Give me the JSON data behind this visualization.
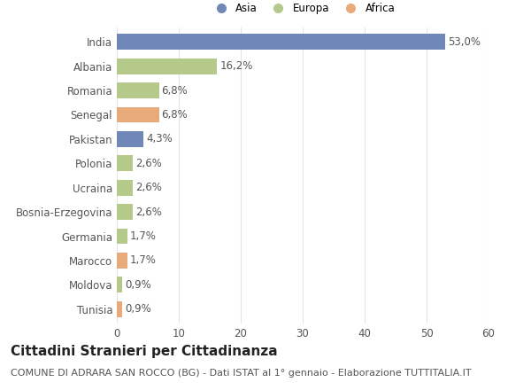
{
  "categories": [
    "India",
    "Albania",
    "Romania",
    "Senegal",
    "Pakistan",
    "Polonia",
    "Ucraina",
    "Bosnia-Erzegovina",
    "Germania",
    "Marocco",
    "Moldova",
    "Tunisia"
  ],
  "values": [
    53.0,
    16.2,
    6.8,
    6.8,
    4.3,
    2.6,
    2.6,
    2.6,
    1.7,
    1.7,
    0.9,
    0.9
  ],
  "colors": [
    "#7088b8",
    "#b5c98a",
    "#b5c98a",
    "#e8aa7a",
    "#7088b8",
    "#b5c98a",
    "#b5c98a",
    "#b5c98a",
    "#b5c98a",
    "#e8aa7a",
    "#b5c98a",
    "#e8aa7a"
  ],
  "legend_labels": [
    "Asia",
    "Europa",
    "Africa"
  ],
  "legend_colors": [
    "#7088b8",
    "#b5c98a",
    "#e8aa7a"
  ],
  "xlim": [
    0,
    60
  ],
  "xticks": [
    0,
    10,
    20,
    30,
    40,
    50,
    60
  ],
  "title": "Cittadini Stranieri per Cittadinanza",
  "subtitle": "COMUNE DI ADRARA SAN ROCCO (BG) - Dati ISTAT al 1° gennaio - Elaborazione TUTTITALIA.IT",
  "title_fontsize": 11,
  "subtitle_fontsize": 8,
  "label_fontsize": 8.5,
  "tick_fontsize": 8.5,
  "background_color": "#ffffff",
  "grid_color": "#e5e5e5",
  "bar_height": 0.65
}
